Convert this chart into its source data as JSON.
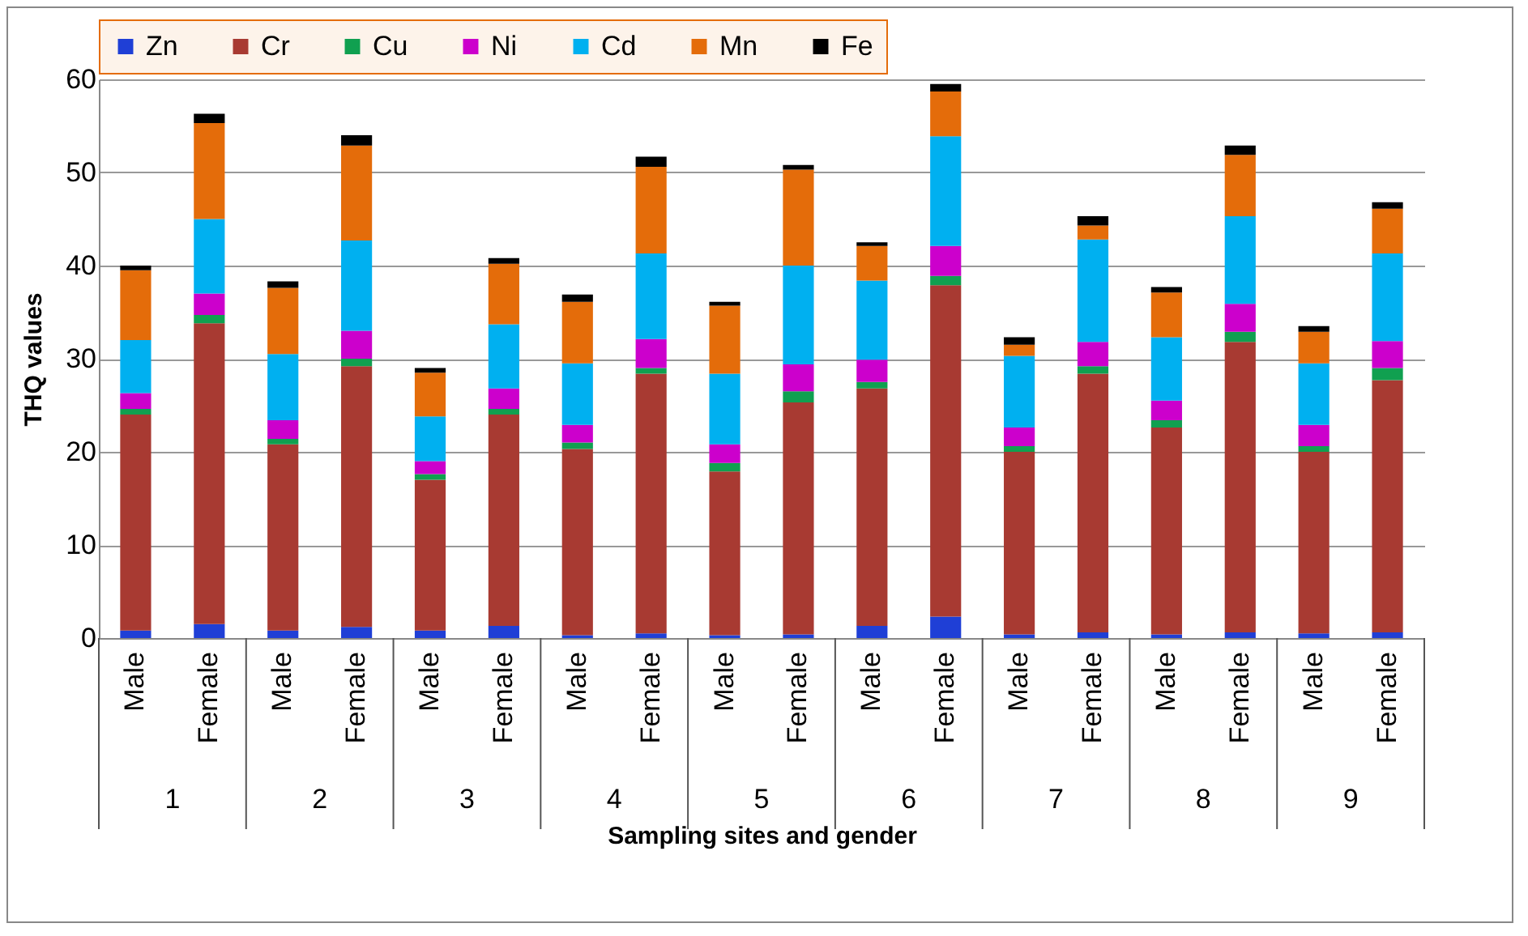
{
  "chart_data": {
    "type": "bar",
    "stacked": true,
    "ylabel": "THQ values",
    "xlabel": "Sampling sites and gender",
    "categories": [
      "Male",
      "Female",
      "Male",
      "Female",
      "Male",
      "Female",
      "Male",
      "Female",
      "Male",
      "Female",
      "Male",
      "Female",
      "Male",
      "Female",
      "Male",
      "Female",
      "Male",
      "Female"
    ],
    "annotations": [
      "1",
      "2",
      "3",
      "4",
      "5",
      "6",
      "7",
      "8",
      "9"
    ],
    "series": [
      {
        "name": "Zn",
        "color": "#1f3fd6",
        "values": [
          0.8,
          1.5,
          0.8,
          1.2,
          0.8,
          1.3,
          0.3,
          0.5,
          0.3,
          0.4,
          1.3,
          2.3,
          0.4,
          0.6,
          0.4,
          0.6,
          0.5,
          0.6
        ]
      },
      {
        "name": "Cr",
        "color": "#a83a32",
        "values": [
          23.2,
          32.3,
          20,
          28,
          16.2,
          22.7,
          20,
          27.9,
          17.6,
          24.9,
          25.5,
          35.6,
          19.6,
          27.8,
          22.2,
          31.2,
          19.5,
          27.1
        ]
      },
      {
        "name": "Cu",
        "color": "#10a050",
        "values": [
          0.6,
          0.9,
          0.6,
          0.8,
          0.6,
          0.6,
          0.7,
          0.6,
          0.9,
          1.2,
          0.7,
          1.0,
          0.6,
          0.8,
          0.8,
          1.1,
          0.6,
          1.3
        ]
      },
      {
        "name": "Ni",
        "color": "#cc00cc",
        "values": [
          1.7,
          2.3,
          2,
          3,
          1.4,
          2.2,
          1.9,
          3.1,
          2,
          2.9,
          2.4,
          3.2,
          2,
          2.6,
          2.1,
          3,
          2.3,
          2.9
        ]
      },
      {
        "name": "Cd",
        "color": "#00b0f0",
        "values": [
          5.7,
          8,
          7.1,
          9.7,
          4.8,
          6.9,
          6.6,
          9.2,
          7.6,
          10.6,
          8.5,
          11.8,
          7.7,
          11,
          6.8,
          9.4,
          6.6,
          9.4
        ]
      },
      {
        "name": "Mn",
        "color": "#e46c0a",
        "values": [
          7.5,
          10.3,
          7.1,
          10.2,
          4.7,
          6.5,
          6.6,
          9.3,
          7.3,
          10.3,
          3.7,
          4.8,
          1.2,
          1.5,
          4.8,
          6.6,
          3.4,
          4.8
        ]
      },
      {
        "name": "Fe",
        "color": "#000000",
        "values": [
          0.5,
          1.0,
          0.7,
          1.1,
          0.5,
          0.6,
          0.8,
          1.1,
          0.4,
          0.5,
          0.4,
          0.8,
          0.8,
          1.0,
          0.6,
          1.0,
          0.6,
          0.7
        ]
      }
    ],
    "ylim": [
      0,
      60
    ],
    "yticks": [
      0,
      10,
      20,
      30,
      40,
      50,
      60
    ],
    "grid": "y",
    "legend": "top"
  }
}
